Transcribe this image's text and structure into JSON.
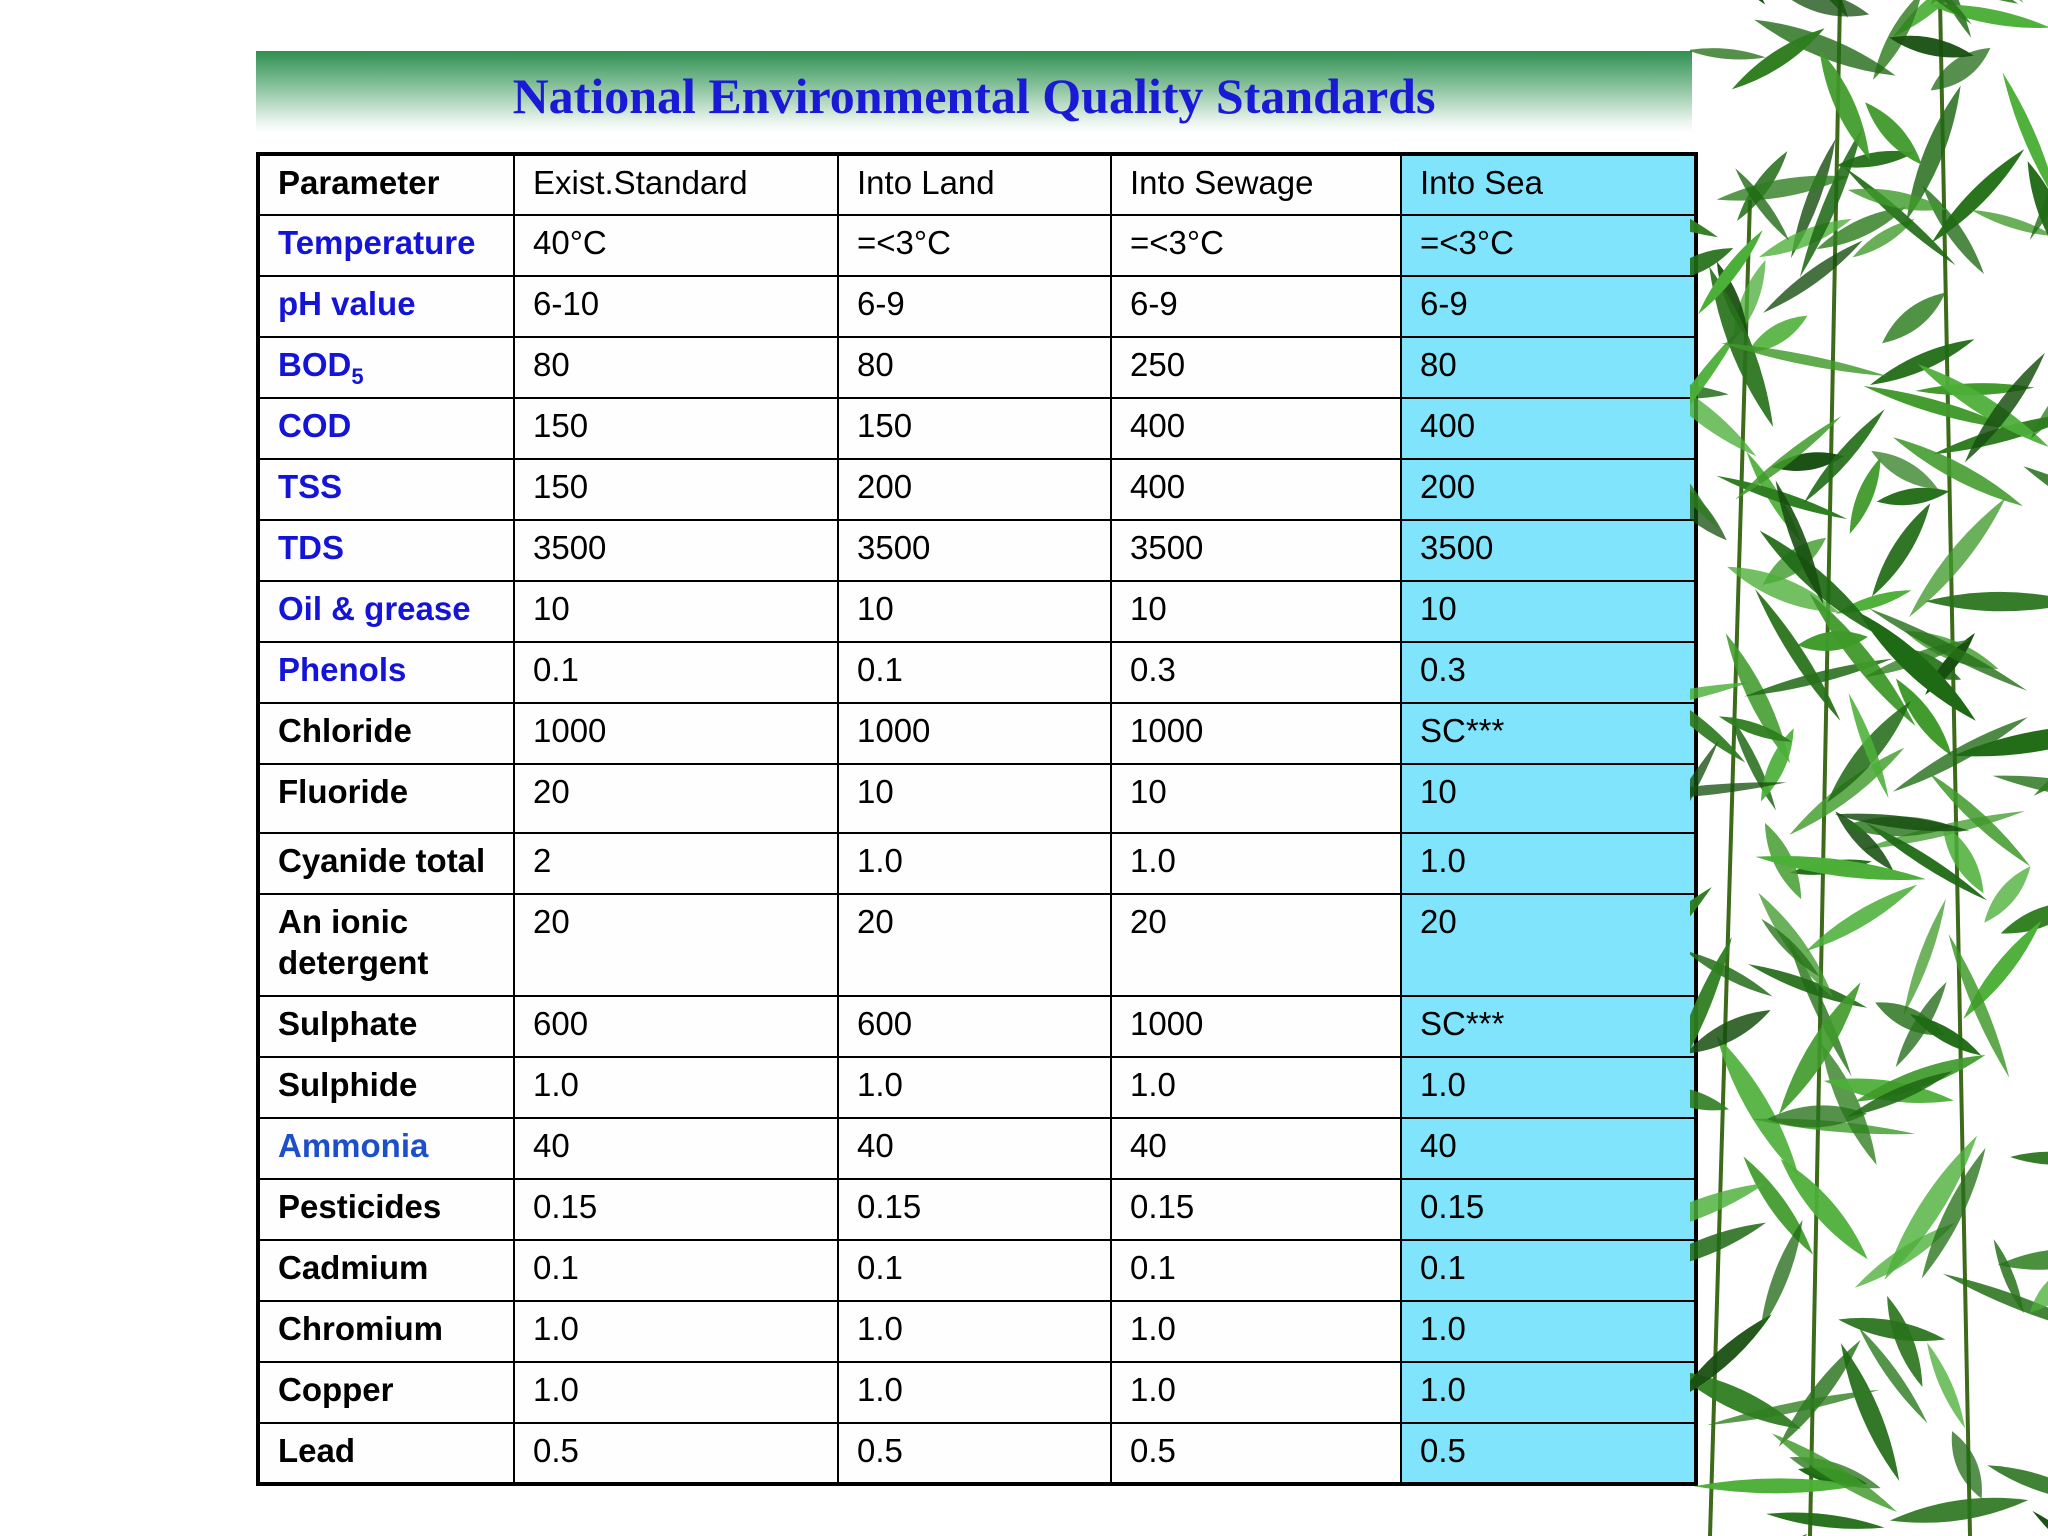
{
  "title": "National Environmental Quality Standards",
  "table": {
    "headers": [
      "Parameter",
      "Exist.Standard",
      "Into Land",
      "Into Sewage",
      "Into Sea"
    ],
    "rows": [
      {
        "param": "Temperature",
        "values": [
          "40°C",
          "=<3°C",
          "=<3°C",
          "=<3°C"
        ]
      },
      {
        "param": "pH value",
        "values": [
          "6-10",
          "6-9",
          "6-9",
          "6-9"
        ]
      },
      {
        "param": "BOD",
        "sub": "5",
        "values": [
          "80",
          "80",
          "250",
          "80"
        ]
      },
      {
        "param": "COD",
        "values": [
          "150",
          "150",
          "400",
          "400"
        ]
      },
      {
        "param": "TSS",
        "values": [
          "150",
          "200",
          "400",
          "200"
        ]
      },
      {
        "param": "TDS",
        "values": [
          "3500",
          "3500",
          "3500",
          "3500"
        ]
      },
      {
        "param": "Oil & grease",
        "values": [
          "10",
          "10",
          "10",
          "10"
        ]
      },
      {
        "param": "Phenols",
        "values": [
          "0.1",
          "0.1",
          "0.3",
          "0.3"
        ]
      },
      {
        "param": "Chloride",
        "values": [
          "1000",
          "1000",
          "1000",
          "SC***"
        ]
      },
      {
        "param": "Fluoride",
        "values": [
          "20",
          "10",
          "10",
          "10"
        ]
      },
      {
        "param": "Cyanide total",
        "values": [
          "2",
          "1.0",
          "1.0",
          "1.0"
        ]
      },
      {
        "param": "An ionic detergent",
        "values": [
          "20",
          "20",
          "20",
          "20"
        ]
      },
      {
        "param": "Sulphate",
        "values": [
          "600",
          "600",
          "1000",
          "SC***"
        ]
      },
      {
        "param": "Sulphide",
        "values": [
          "1.0",
          "1.0",
          "1.0",
          "1.0"
        ]
      },
      {
        "param": "Ammonia",
        "values": [
          "40",
          "40",
          "40",
          "40"
        ]
      },
      {
        "param": "Pesticides",
        "values": [
          "0.15",
          "0.15",
          "0.15",
          "0.15"
        ]
      },
      {
        "param": "Cadmium",
        "values": [
          "0.1",
          "0.1",
          "0.1",
          "0.1"
        ]
      },
      {
        "param": "Chromium",
        "values": [
          "1.0",
          "1.0",
          "1.0",
          "1.0"
        ]
      },
      {
        "param": "Copper",
        "values": [
          "1.0",
          "1.0",
          "1.0",
          "1.0"
        ]
      },
      {
        "param": "Lead",
        "values": [
          "0.5",
          "0.5",
          "0.5",
          "0.5"
        ]
      }
    ]
  },
  "colors": {
    "title": "#1a1ad6",
    "param_blue": "#1414d8",
    "param_ammonia": "#1d4fc8",
    "sea_column": "#7fe4fc",
    "title_band": "#2f8f52",
    "bamboo": "#2e7d1f"
  },
  "decoration": "bamboo-leaves-image"
}
